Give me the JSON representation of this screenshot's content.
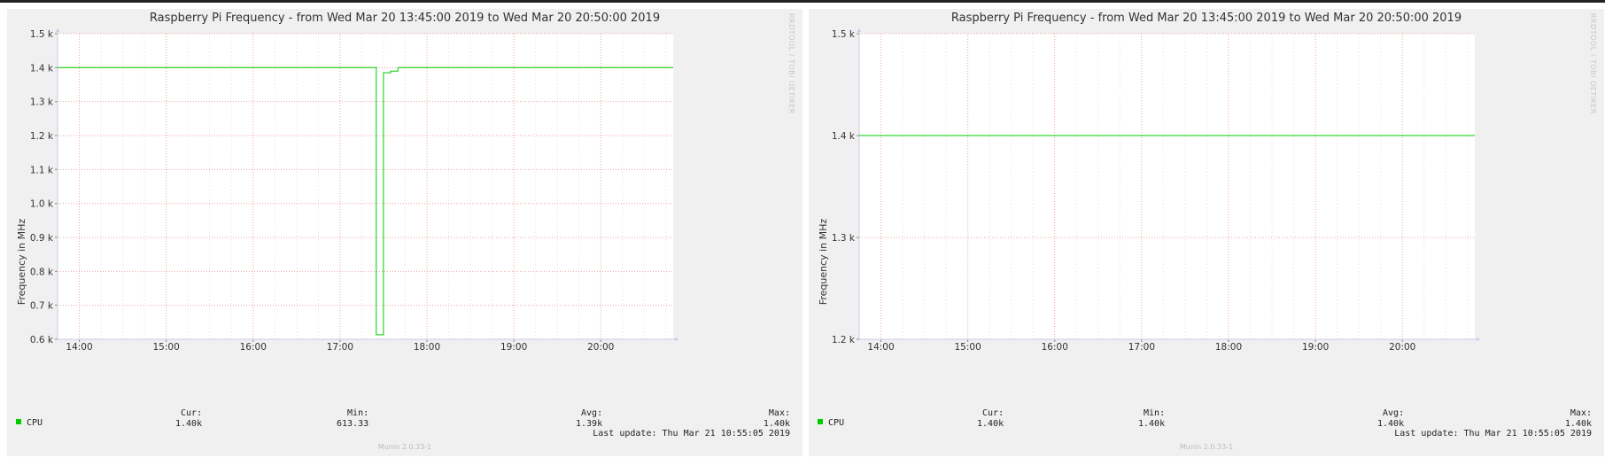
{
  "colors": {
    "series": "#00cc00",
    "grid_major": "#f4a0a0",
    "grid_minor": "#f8d8d8",
    "panel_bg": "#f0f0f0",
    "plot_bg": "#ffffff"
  },
  "panels": [
    {
      "title": "Raspberry Pi Frequency - from Wed Mar 20 13:45:00 2019 to Wed Mar 20 20:50:00 2019",
      "vlabel": "Frequency in MHz",
      "watermark": "RRDTOOL / TOBI OETIKER",
      "legend_name": "CPU",
      "stats": {
        "cur_label": "Cur:",
        "cur": "1.40k",
        "min_label": "Min:",
        "min": "613.33",
        "avg_label": "Avg:",
        "avg": "1.39k",
        "max_label": "Max:",
        "max": "1.40k"
      },
      "last_update": "Last update:  Thu Mar 21 10:55:05 2019",
      "version": "Munin 2.0.33-1"
    },
    {
      "title": "Raspberry Pi Frequency - from Wed Mar 20 13:45:00 2019 to Wed Mar 20 20:50:00 2019",
      "vlabel": "Frequency in MHz",
      "watermark": "RRDTOOL / TOBI OETIKER",
      "legend_name": "CPU",
      "stats": {
        "cur_label": "Cur:",
        "cur": "1.40k",
        "min_label": "Min:",
        "min": "1.40k",
        "avg_label": "Avg:",
        "avg": "1.40k",
        "max_label": "Max:",
        "max": "1.40k"
      },
      "last_update": "Last update:  Thu Mar 21 10:55:05 2019",
      "version": "Munin 2.0.33-1"
    }
  ],
  "chart_data": [
    {
      "type": "line",
      "title": "Raspberry Pi Frequency - from Wed Mar 20 13:45:00 2019 to Wed Mar 20 20:50:00 2019",
      "ylabel": "Frequency in MHz",
      "xlim": [
        "13:45",
        "20:50"
      ],
      "ylim": [
        600,
        1500
      ],
      "yticks": [
        600,
        700,
        800,
        900,
        1000,
        1100,
        1200,
        1300,
        1400,
        1500
      ],
      "ytick_labels": [
        "0.6 k",
        "0.7 k",
        "0.8 k",
        "0.9 k",
        "1.0 k",
        "1.1 k",
        "1.2 k",
        "1.3 k",
        "1.4 k",
        "1.5 k"
      ],
      "xticks": [
        "14:00",
        "15:00",
        "16:00",
        "17:00",
        "18:00",
        "19:00",
        "20:00"
      ],
      "grid": true,
      "legend": "bottom-left",
      "series": [
        {
          "name": "CPU",
          "color": "#00cc00",
          "x": [
            "13:45",
            "17:25",
            "17:25",
            "17:30",
            "17:30",
            "17:35",
            "17:35",
            "17:40",
            "17:40",
            "20:50"
          ],
          "y": [
            1400,
            1400,
            613.33,
            613.33,
            1385,
            1385,
            1390,
            1390,
            1400,
            1400
          ]
        }
      ]
    },
    {
      "type": "line",
      "title": "Raspberry Pi Frequency - from Wed Mar 20 13:45:00 2019 to Wed Mar 20 20:50:00 2019",
      "ylabel": "Frequency in MHz",
      "xlim": [
        "13:45",
        "20:50"
      ],
      "ylim": [
        1200,
        1500
      ],
      "yticks": [
        1200,
        1300,
        1400,
        1500
      ],
      "ytick_labels": [
        "1.2 k",
        "1.3 k",
        "1.4 k",
        "1.5 k"
      ],
      "xticks": [
        "14:00",
        "15:00",
        "16:00",
        "17:00",
        "18:00",
        "19:00",
        "20:00"
      ],
      "grid": true,
      "legend": "bottom-left",
      "series": [
        {
          "name": "CPU",
          "color": "#00cc00",
          "x": [
            "13:45",
            "20:50"
          ],
          "y": [
            1400,
            1400
          ]
        }
      ]
    }
  ]
}
